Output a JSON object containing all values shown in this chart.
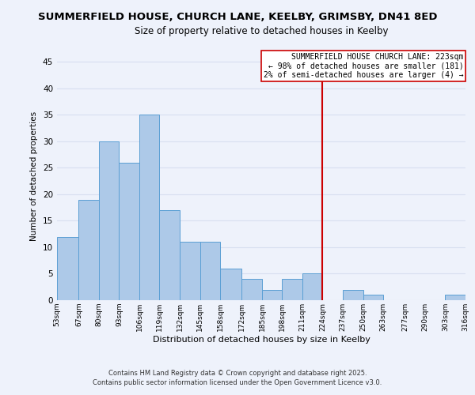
{
  "title1": "SUMMERFIELD HOUSE, CHURCH LANE, KEELBY, GRIMSBY, DN41 8ED",
  "title2": "Size of property relative to detached houses in Keelby",
  "xlabel": "Distribution of detached houses by size in Keelby",
  "ylabel": "Number of detached properties",
  "bar_left_edges": [
    53,
    67,
    80,
    93,
    106,
    119,
    132,
    145,
    158,
    172,
    185,
    198,
    211,
    224,
    237,
    250,
    263,
    277,
    290,
    303
  ],
  "bar_heights": [
    12,
    19,
    30,
    26,
    35,
    17,
    11,
    11,
    6,
    4,
    2,
    4,
    5,
    0,
    2,
    1,
    0,
    0,
    0,
    1
  ],
  "bar_widths": [
    14,
    13,
    13,
    13,
    13,
    13,
    13,
    13,
    14,
    13,
    13,
    13,
    13,
    13,
    13,
    13,
    14,
    13,
    13,
    13
  ],
  "tick_labels": [
    "53sqm",
    "67sqm",
    "80sqm",
    "93sqm",
    "106sqm",
    "119sqm",
    "132sqm",
    "145sqm",
    "158sqm",
    "172sqm",
    "185sqm",
    "198sqm",
    "211sqm",
    "224sqm",
    "237sqm",
    "250sqm",
    "263sqm",
    "277sqm",
    "290sqm",
    "303sqm",
    "316sqm"
  ],
  "bar_color": "#adc9e8",
  "bar_edge_color": "#5a9fd4",
  "vline_x": 224,
  "vline_color": "#cc0000",
  "ylim": [
    0,
    47
  ],
  "yticks": [
    0,
    5,
    10,
    15,
    20,
    25,
    30,
    35,
    40,
    45
  ],
  "annotation_title": "SUMMERFIELD HOUSE CHURCH LANE: 223sqm",
  "annotation_line1": "← 98% of detached houses are smaller (181)",
  "annotation_line2": "2% of semi-detached houses are larger (4) →",
  "footer1": "Contains HM Land Registry data © Crown copyright and database right 2025.",
  "footer2": "Contains public sector information licensed under the Open Government Licence v3.0.",
  "background_color": "#eef2fb",
  "grid_color": "#d8dff0",
  "title1_fontsize": 9.5,
  "title2_fontsize": 8.5
}
